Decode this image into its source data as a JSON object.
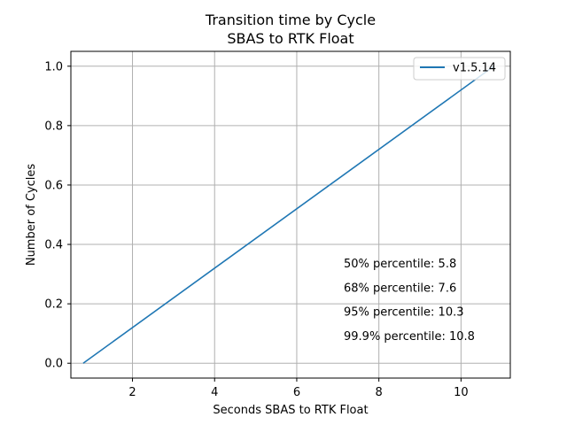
{
  "chart_data": {
    "type": "line",
    "title": "Transition time by Cycle",
    "subtitle": "SBAS to RTK Float",
    "xlabel": "Seconds SBAS to RTK Float",
    "ylabel": "Number of Cycles",
    "xlim": [
      0.5,
      11.2
    ],
    "ylim": [
      -0.05,
      1.05
    ],
    "xticks": [
      2,
      4,
      6,
      8,
      10
    ],
    "yticks": [
      0.0,
      0.2,
      0.4,
      0.6,
      0.8,
      1.0
    ],
    "xtick_labels": [
      "2",
      "4",
      "6",
      "8",
      "10"
    ],
    "ytick_labels": [
      "0.0",
      "0.2",
      "0.4",
      "0.6",
      "0.8",
      "1.0"
    ],
    "grid": true,
    "legend_position": "top-right",
    "series": [
      {
        "name": "v1.5.14",
        "color": "#1f77b4",
        "x": [
          0.8,
          10.8
        ],
        "y": [
          0.0,
          1.0
        ]
      }
    ],
    "annotations": [
      "50% percentile: 5.8",
      "68% percentile: 7.6",
      "95% percentile: 10.3",
      "99.9% percentile: 10.8"
    ]
  }
}
